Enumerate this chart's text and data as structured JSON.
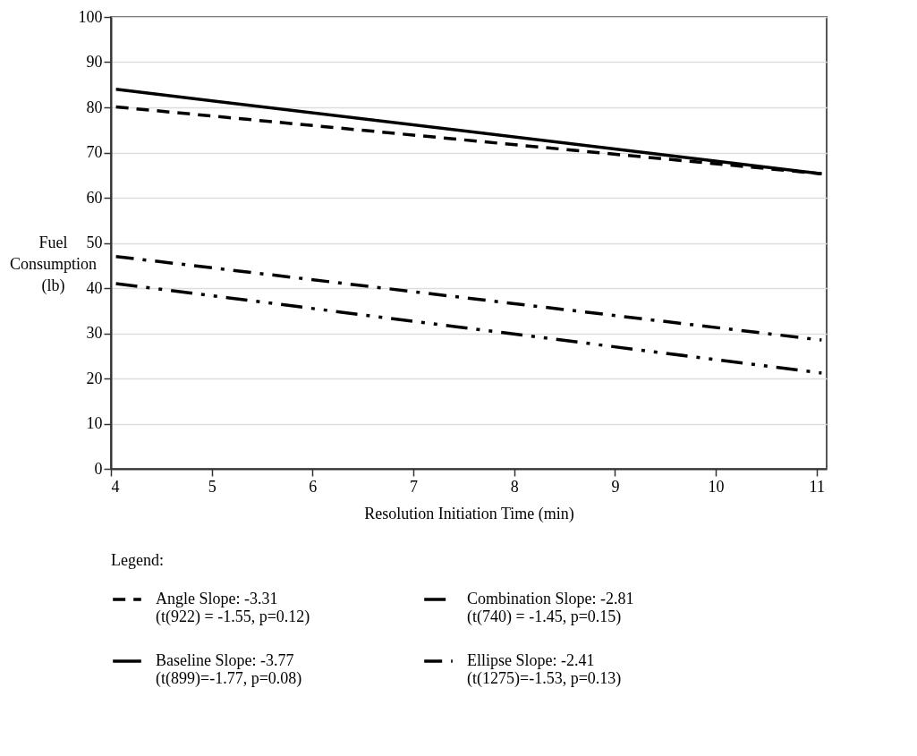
{
  "chart_data": {
    "type": "line",
    "xlabel": "Resolution Initiation Time (min)",
    "ylabel": "Fuel\nConsumption\n(lb)",
    "legend_title": "Legend:",
    "legend": "bottom",
    "grid": "y",
    "x": [
      4.05,
      11.05
    ],
    "xlim": [
      4,
      11.1
    ],
    "xticks": [
      4,
      5,
      6,
      7,
      8,
      9,
      10,
      11
    ],
    "ylim": [
      0,
      100
    ],
    "yticks": [
      0,
      10,
      20,
      30,
      40,
      50,
      60,
      70,
      80,
      90,
      100
    ],
    "series": [
      {
        "name": "Angle Slope: -3.31\n(t(922) = -1.55, p=0.12)",
        "color": "#000000",
        "line_style": "dashed",
        "values": [
          80.1,
          65.3
        ]
      },
      {
        "name": "Baseline Slope: -3.77\n(t(899)=-1.77, p=0.08)",
        "color": "#000000",
        "line_style": "solid",
        "values": [
          84.0,
          65.3
        ]
      },
      {
        "name": "Combination Slope: -2.81\n(t(740) = -1.45, p=0.15)",
        "color": "#000000",
        "line_style": "dashdotdot",
        "values": [
          41.0,
          21.2
        ]
      },
      {
        "name": "Ellipse Slope: -2.41\n(t(1275)=-1.53, p=0.13)",
        "color": "#000000",
        "line_style": "dashdot",
        "values": [
          47.0,
          28.5
        ]
      }
    ]
  }
}
